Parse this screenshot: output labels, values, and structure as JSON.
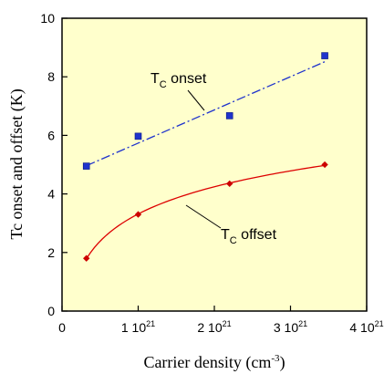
{
  "chart_data": {
    "type": "scatter",
    "xlabel_main": "Carrier density (cm",
    "xlabel_sup": "-3",
    "xlabel_end": ")",
    "ylabel": "Tc onset and offset (K)",
    "xlim": [
      0,
      4e+21
    ],
    "ylim": [
      0,
      10
    ],
    "y_ticks": [
      "0",
      "2",
      "4",
      "6",
      "8",
      "10"
    ],
    "y_tick_values": [
      0,
      2,
      4,
      6,
      8,
      10
    ],
    "x_ticks": [
      {
        "value": 0,
        "label": "0",
        "sup": ""
      },
      {
        "value": 1e+21,
        "label": "1 10",
        "sup": "21"
      },
      {
        "value": 2e+21,
        "label": "2 10",
        "sup": "21"
      },
      {
        "value": 3e+21,
        "label": "3 10",
        "sup": "21"
      },
      {
        "value": 4e+21,
        "label": "4 10",
        "sup": "21"
      }
    ],
    "grid": false,
    "background_color": "#FFFFCC",
    "series": [
      {
        "label_main": "T",
        "label_sub": "C",
        "label_end": " onset",
        "color": "#1F33CC",
        "fit_color": "#1F33CC",
        "x": [
          3.2e+20,
          1e+21,
          2.2e+21,
          3.45e+21
        ],
        "y": [
          4.95,
          5.97,
          6.67,
          8.72
        ]
      },
      {
        "label_main": "T",
        "label_sub": "C",
        "label_end": " offset",
        "color": "#CC0000",
        "fit_color": "#DD0000",
        "x": [
          3.2e+20,
          1e+21,
          2.2e+21,
          3.45e+21
        ],
        "y": [
          1.8,
          3.3,
          4.35,
          5.0
        ]
      }
    ]
  }
}
